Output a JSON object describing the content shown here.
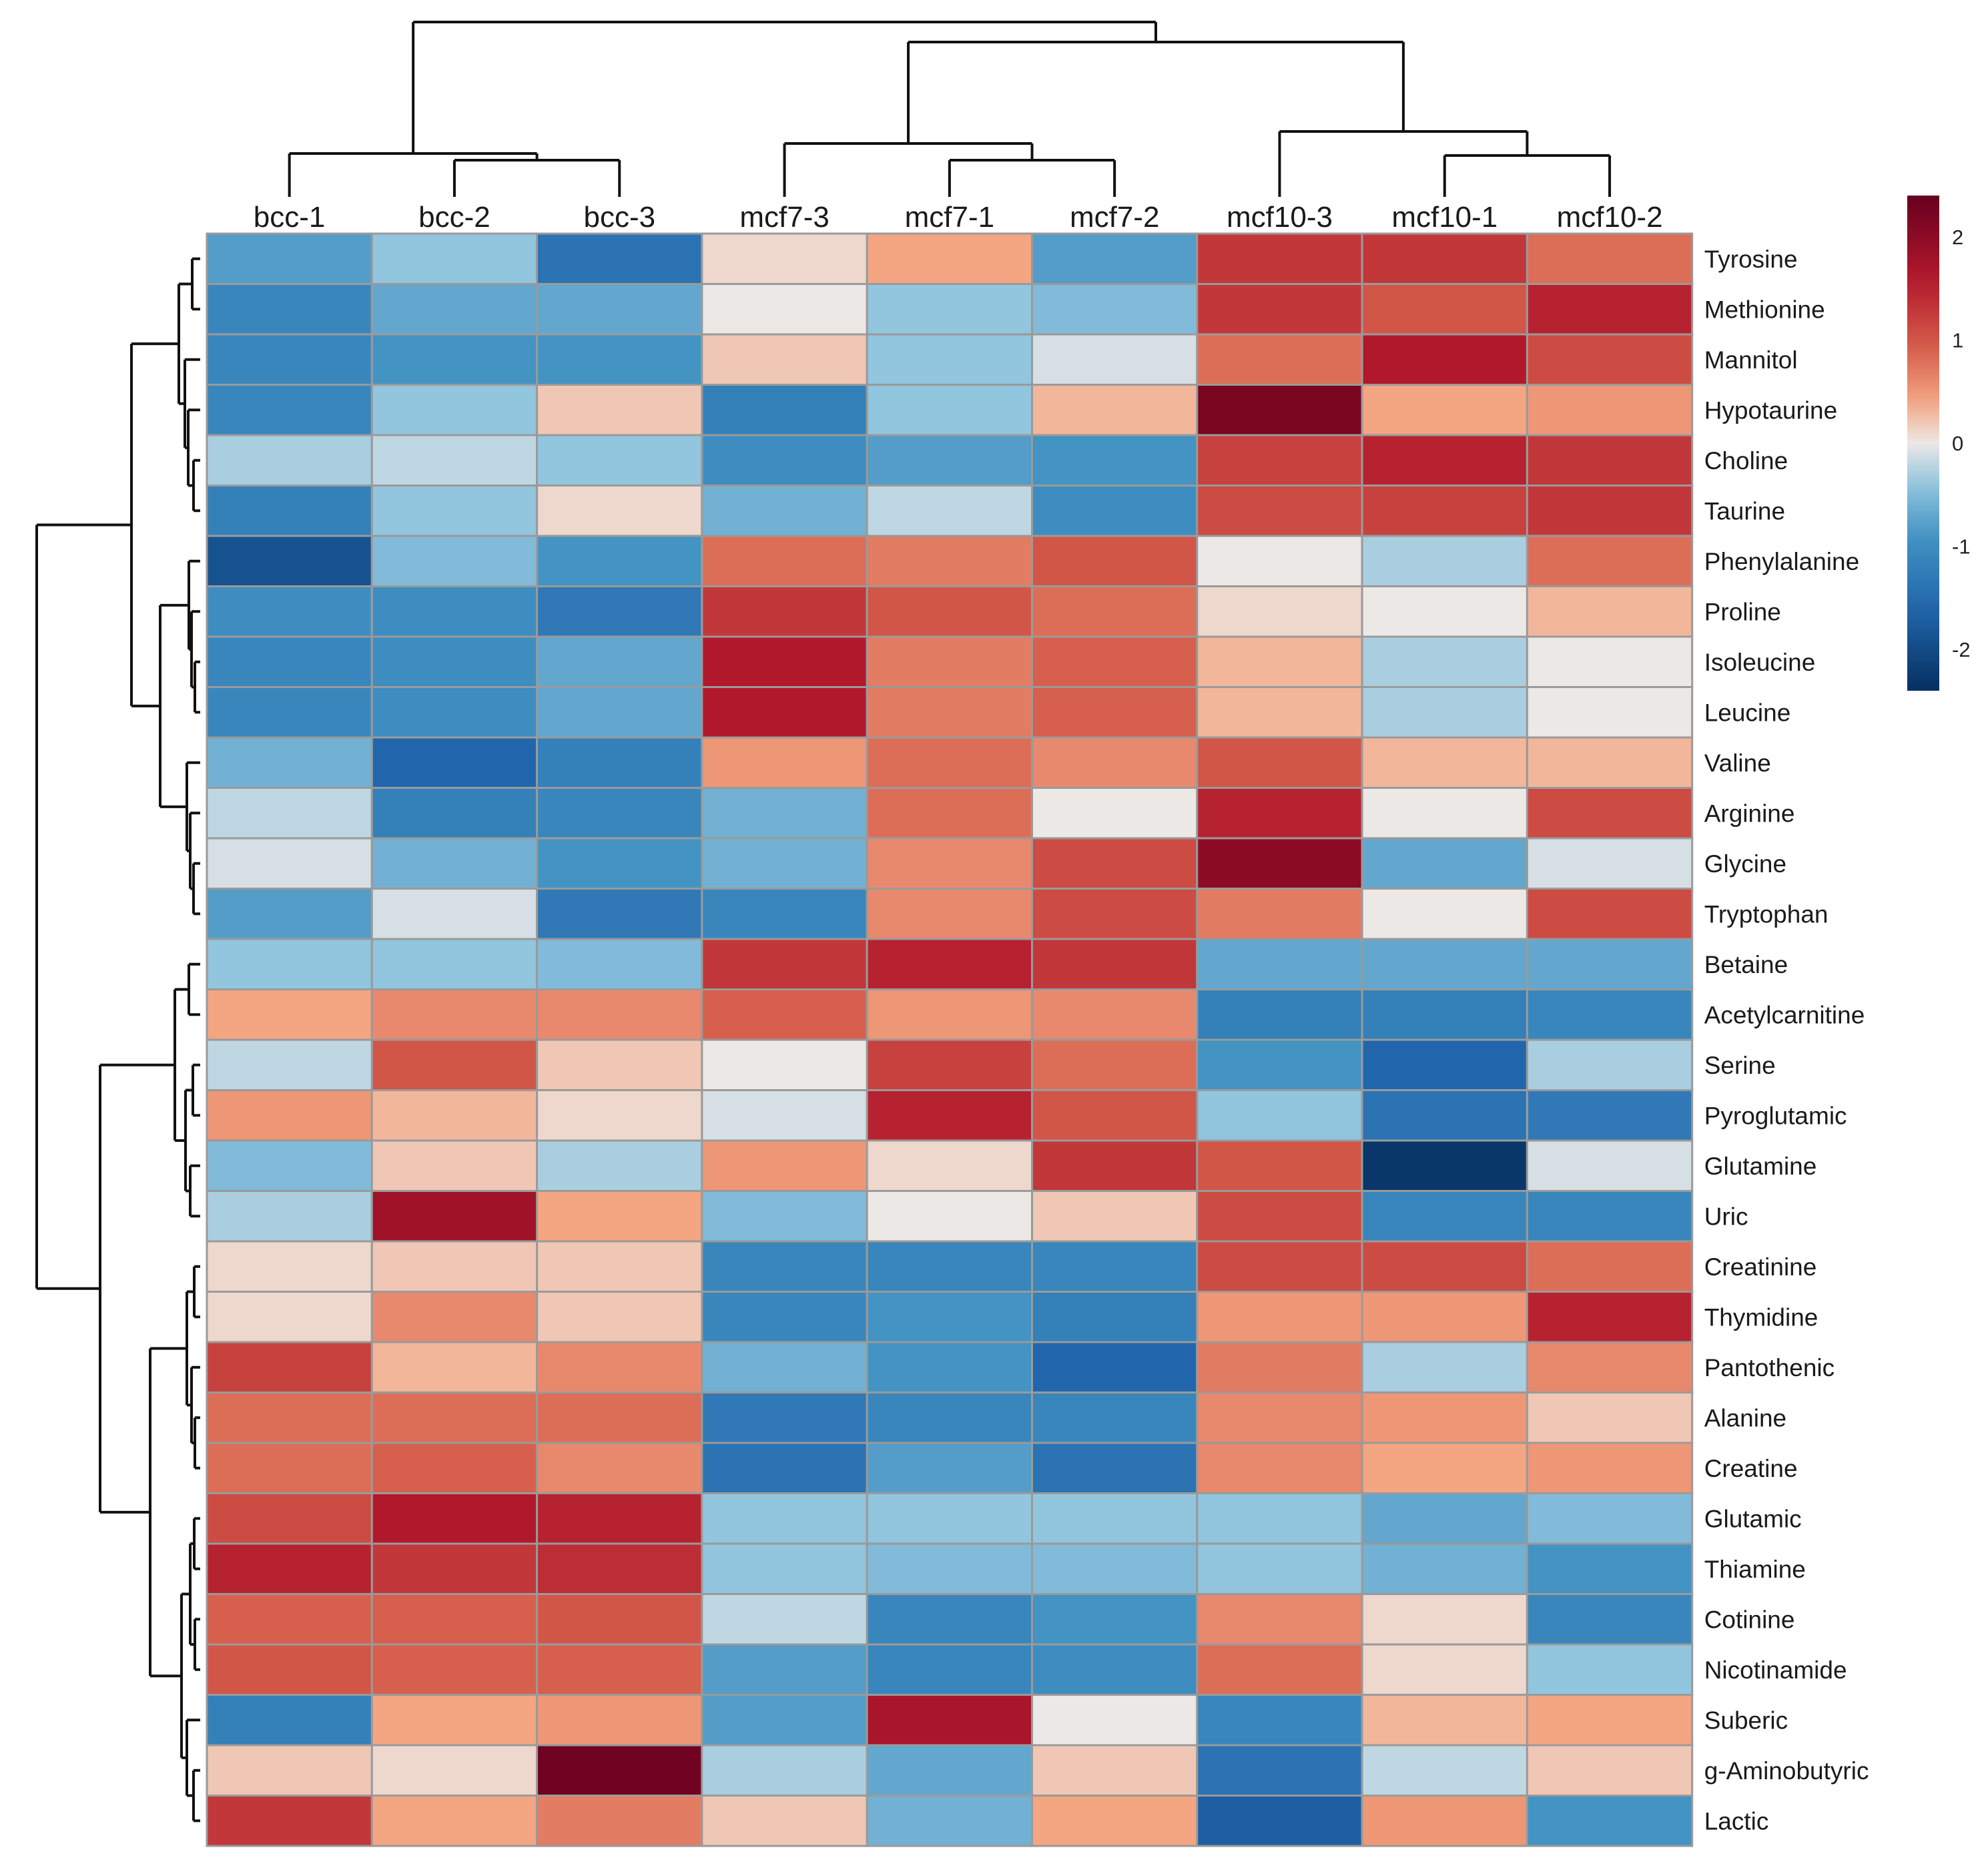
{
  "chart_data": {
    "type": "heatmap",
    "title": "",
    "columns": [
      "bcc-1",
      "bcc-2",
      "bcc-3",
      "mcf7-3",
      "mcf7-1",
      "mcf7-2",
      "mcf10-3",
      "mcf10-1",
      "mcf10-2"
    ],
    "rows": [
      "Tyrosine",
      "Methionine",
      "Mannitol",
      "Hypotaurine",
      "Choline",
      "Taurine",
      "Phenylalanine",
      "Proline",
      "Isoleucine",
      "Leucine",
      "Valine",
      "Arginine",
      "Glycine",
      "Tryptophan",
      "Betaine",
      "Acetylcarnitine",
      "Serine",
      "Pyroglutamic",
      "Glutamine",
      "Uric",
      "Creatinine",
      "Thymidine",
      "Pantothenic",
      "Alanine",
      "Creatine",
      "Glutamic",
      "Thiamine",
      "Cotinine",
      "Nicotinamide",
      "Suberic",
      "g-Aminobutyric",
      "Lactic"
    ],
    "values": [
      [
        -0.8,
        -0.4,
        -1.4,
        0.1,
        0.4,
        -0.8,
        1.3,
        1.3,
        0.8
      ],
      [
        -1.1,
        -0.7,
        -0.7,
        0.0,
        -0.4,
        -0.5,
        1.3,
        1.0,
        1.5
      ],
      [
        -1.1,
        -0.9,
        -0.9,
        0.2,
        -0.4,
        -0.1,
        0.8,
        1.6,
        1.1
      ],
      [
        -1.1,
        -0.4,
        0.2,
        -1.2,
        -0.4,
        0.3,
        2.2,
        0.4,
        0.5
      ],
      [
        -0.3,
        -0.2,
        -0.4,
        -1.0,
        -0.8,
        -0.9,
        1.2,
        1.5,
        1.3
      ],
      [
        -1.2,
        -0.4,
        0.1,
        -0.6,
        -0.2,
        -1.0,
        1.1,
        1.2,
        1.3
      ],
      [
        -1.9,
        -0.5,
        -0.9,
        0.8,
        0.7,
        1.0,
        0.0,
        -0.3,
        0.8
      ],
      [
        -1.0,
        -1.0,
        -1.3,
        1.3,
        1.0,
        0.8,
        0.1,
        0.0,
        0.3
      ],
      [
        -1.1,
        -1.0,
        -0.7,
        1.6,
        0.7,
        0.9,
        0.3,
        -0.3,
        0.0
      ],
      [
        -1.1,
        -1.0,
        -0.7,
        1.6,
        0.7,
        0.9,
        0.3,
        -0.3,
        0.0
      ],
      [
        -0.6,
        -1.6,
        -1.2,
        0.5,
        0.8,
        0.6,
        1.0,
        0.3,
        0.3
      ],
      [
        -0.2,
        -1.2,
        -1.1,
        -0.6,
        0.8,
        0.0,
        1.5,
        0.0,
        1.1
      ],
      [
        -0.1,
        -0.6,
        -0.9,
        -0.6,
        0.6,
        1.1,
        2.0,
        -0.7,
        -0.1
      ],
      [
        -0.8,
        -0.1,
        -1.3,
        -1.1,
        0.6,
        1.1,
        0.7,
        0.0,
        1.1
      ],
      [
        -0.4,
        -0.4,
        -0.5,
        1.3,
        1.5,
        1.3,
        -0.7,
        -0.7,
        -0.7
      ],
      [
        0.4,
        0.6,
        0.6,
        0.9,
        0.5,
        0.6,
        -1.2,
        -1.2,
        -1.1
      ],
      [
        -0.2,
        1.0,
        0.2,
        0.0,
        1.2,
        0.8,
        -0.9,
        -1.6,
        -0.3
      ],
      [
        0.5,
        0.3,
        0.1,
        -0.1,
        1.5,
        1.0,
        -0.4,
        -1.4,
        -1.3
      ],
      [
        -0.5,
        0.2,
        -0.3,
        0.5,
        0.1,
        1.3,
        1.0,
        -2.3,
        -0.1
      ],
      [
        -0.3,
        1.8,
        0.4,
        -0.5,
        0.0,
        0.2,
        1.1,
        -1.1,
        -1.1
      ],
      [
        0.1,
        0.2,
        0.2,
        -1.1,
        -1.1,
        -1.1,
        1.1,
        1.1,
        0.8
      ],
      [
        0.1,
        0.6,
        0.2,
        -1.1,
        -0.9,
        -1.2,
        0.5,
        0.5,
        1.5
      ],
      [
        1.2,
        0.3,
        0.6,
        -0.6,
        -0.9,
        -1.6,
        0.7,
        -0.3,
        0.6
      ],
      [
        0.8,
        0.8,
        0.8,
        -1.3,
        -1.1,
        -1.1,
        0.6,
        0.5,
        0.2
      ],
      [
        0.8,
        0.9,
        0.6,
        -1.4,
        -0.8,
        -1.4,
        0.6,
        0.4,
        0.5
      ],
      [
        1.1,
        1.6,
        1.5,
        -0.4,
        -0.4,
        -0.4,
        -0.4,
        -0.7,
        -0.5
      ],
      [
        1.5,
        1.3,
        1.4,
        -0.4,
        -0.5,
        -0.5,
        -0.4,
        -0.6,
        -0.9
      ],
      [
        0.9,
        0.9,
        1.0,
        -0.2,
        -1.1,
        -0.9,
        0.6,
        0.1,
        -1.1
      ],
      [
        1.0,
        0.9,
        0.9,
        -0.8,
        -1.1,
        -1.0,
        0.8,
        0.1,
        -0.4
      ],
      [
        -1.2,
        0.4,
        0.5,
        -0.8,
        1.7,
        0.0,
        -1.1,
        0.3,
        0.4
      ],
      [
        0.2,
        0.1,
        2.3,
        -0.3,
        -0.7,
        0.2,
        -1.4,
        -0.2,
        0.2
      ],
      [
        1.3,
        0.4,
        0.7,
        0.2,
        -0.6,
        0.4,
        -1.7,
        0.5,
        -0.9
      ]
    ],
    "zlim": [
      -2.4,
      2.4
    ],
    "legend": {
      "ticks": [
        "2",
        "1",
        "0",
        "-1",
        "-2"
      ],
      "tick_values": [
        2,
        1,
        0,
        -1,
        -2
      ],
      "placement": "top-right"
    },
    "colormap": {
      "stops": [
        [
          -2.4,
          "#053061"
        ],
        [
          -1.6,
          "#2166ac"
        ],
        [
          -0.9,
          "#4393c3"
        ],
        [
          -0.4,
          "#92c5de"
        ],
        [
          0.0,
          "#ece8e6"
        ],
        [
          0.4,
          "#f4a582"
        ],
        [
          0.9,
          "#d6604d"
        ],
        [
          1.6,
          "#b2182b"
        ],
        [
          2.4,
          "#67001f"
        ]
      ]
    },
    "grid": true,
    "xlabel": "",
    "ylabel": ""
  }
}
